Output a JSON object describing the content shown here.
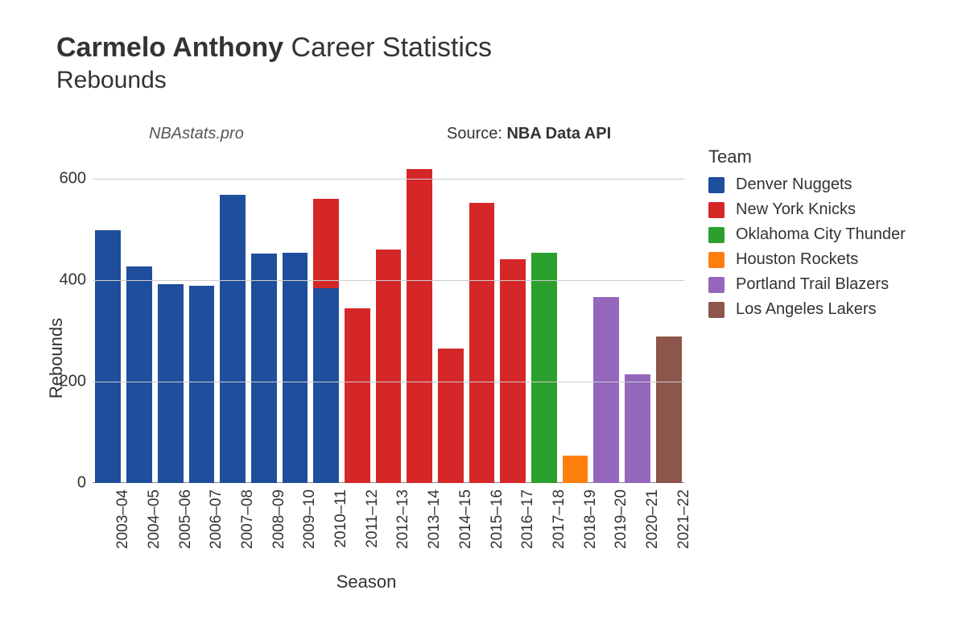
{
  "title_bold": "Carmelo Anthony",
  "title_rest": "Career Statistics",
  "subtitle": "Rebounds",
  "watermark": "NBAstats.pro",
  "source_label": "Source: ",
  "source_value": "NBA Data API",
  "legend_title": "Team",
  "ylabel": "Rebounds",
  "xlabel": "Season",
  "chart": {
    "type": "bar_stacked",
    "ylim": [
      0,
      650
    ],
    "yticks": [
      0,
      200,
      400,
      600
    ],
    "grid_color": "#cccccc",
    "axis_color": "#888888",
    "background_color": "#ffffff",
    "bar_width_ratio": 0.82,
    "title_fontsize": 34,
    "subtitle_fontsize": 30,
    "label_fontsize": 22,
    "tick_fontsize": 20,
    "teams": [
      {
        "name": "Denver Nuggets",
        "color": "#1f4e9c"
      },
      {
        "name": "New York Knicks",
        "color": "#d62728"
      },
      {
        "name": "Oklahoma City Thunder",
        "color": "#2ca02c"
      },
      {
        "name": "Houston Rockets",
        "color": "#ff7f0e"
      },
      {
        "name": "Portland Trail Blazers",
        "color": "#9467bd"
      },
      {
        "name": "Los Angeles Lakers",
        "color": "#8c564b"
      }
    ],
    "seasons": [
      {
        "label": "2003–04",
        "segments": [
          {
            "team": "Denver Nuggets",
            "value": 498
          }
        ]
      },
      {
        "label": "2004–05",
        "segments": [
          {
            "team": "Denver Nuggets",
            "value": 426
          }
        ]
      },
      {
        "label": "2005–06",
        "segments": [
          {
            "team": "Denver Nuggets",
            "value": 392
          }
        ]
      },
      {
        "label": "2006–07",
        "segments": [
          {
            "team": "Denver Nuggets",
            "value": 388
          }
        ]
      },
      {
        "label": "2007–08",
        "segments": [
          {
            "team": "Denver Nuggets",
            "value": 568
          }
        ]
      },
      {
        "label": "2008–09",
        "segments": [
          {
            "team": "Denver Nuggets",
            "value": 452
          }
        ]
      },
      {
        "label": "2009–10",
        "segments": [
          {
            "team": "Denver Nuggets",
            "value": 454
          }
        ]
      },
      {
        "label": "2010–11",
        "segments": [
          {
            "team": "Denver Nuggets",
            "value": 384
          },
          {
            "team": "New York Knicks",
            "value": 176
          }
        ]
      },
      {
        "label": "2011–12",
        "segments": [
          {
            "team": "New York Knicks",
            "value": 344
          }
        ]
      },
      {
        "label": "2012–13",
        "segments": [
          {
            "team": "New York Knicks",
            "value": 460
          }
        ]
      },
      {
        "label": "2013–14",
        "segments": [
          {
            "team": "New York Knicks",
            "value": 618
          }
        ]
      },
      {
        "label": "2014–15",
        "segments": [
          {
            "team": "New York Knicks",
            "value": 264
          }
        ]
      },
      {
        "label": "2015–16",
        "segments": [
          {
            "team": "New York Knicks",
            "value": 552
          }
        ]
      },
      {
        "label": "2016–17",
        "segments": [
          {
            "team": "New York Knicks",
            "value": 440
          }
        ]
      },
      {
        "label": "2017–18",
        "segments": [
          {
            "team": "Oklahoma City Thunder",
            "value": 454
          }
        ]
      },
      {
        "label": "2018–19",
        "segments": [
          {
            "team": "Houston Rockets",
            "value": 54
          }
        ]
      },
      {
        "label": "2019–20",
        "segments": [
          {
            "team": "Portland Trail Blazers",
            "value": 366
          }
        ]
      },
      {
        "label": "2020–21",
        "segments": [
          {
            "team": "Portland Trail Blazers",
            "value": 214
          }
        ]
      },
      {
        "label": "2021–22",
        "segments": [
          {
            "team": "Los Angeles Lakers",
            "value": 288
          }
        ]
      }
    ]
  }
}
